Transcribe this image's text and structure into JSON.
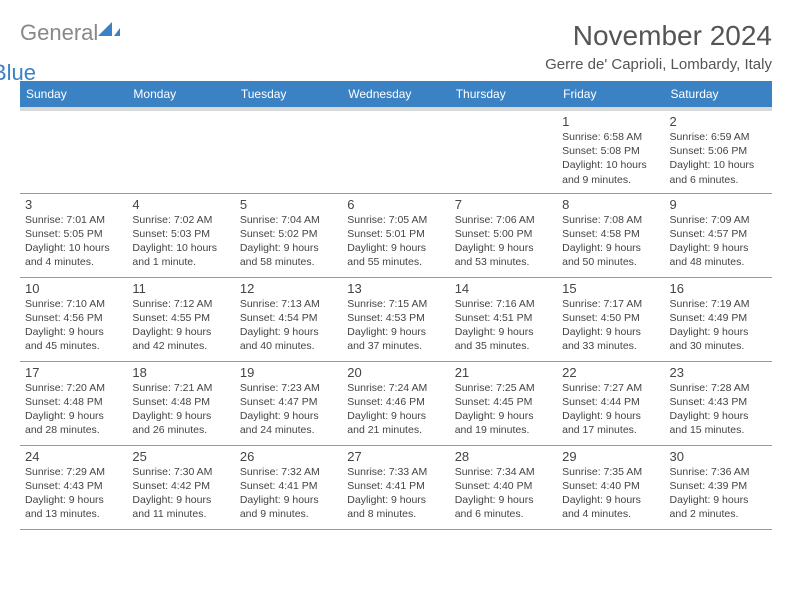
{
  "brand": {
    "part1": "General",
    "part2": "Blue",
    "gray": "#888888",
    "blue": "#3b82c4"
  },
  "header": {
    "month_title": "November 2024",
    "location": "Gerre de' Caprioli, Lombardy, Italy",
    "title_fontsize": 28,
    "location_fontsize": 15,
    "title_color": "#555555"
  },
  "calendar": {
    "type": "table",
    "columns": [
      "Sunday",
      "Monday",
      "Tuesday",
      "Wednesday",
      "Thursday",
      "Friday",
      "Saturday"
    ],
    "header_bg": "#3b82c4",
    "header_fg": "#ffffff",
    "header_underband": "#d9d9d9",
    "row_border": "#999999",
    "daynum_fontsize": 13,
    "info_fontsize": 10.5,
    "weeks": [
      [
        null,
        null,
        null,
        null,
        null,
        {
          "n": "1",
          "sunrise": "Sunrise: 6:58 AM",
          "sunset": "Sunset: 5:08 PM",
          "day": "Daylight: 10 hours and 9 minutes."
        },
        {
          "n": "2",
          "sunrise": "Sunrise: 6:59 AM",
          "sunset": "Sunset: 5:06 PM",
          "day": "Daylight: 10 hours and 6 minutes."
        }
      ],
      [
        {
          "n": "3",
          "sunrise": "Sunrise: 7:01 AM",
          "sunset": "Sunset: 5:05 PM",
          "day": "Daylight: 10 hours and 4 minutes."
        },
        {
          "n": "4",
          "sunrise": "Sunrise: 7:02 AM",
          "sunset": "Sunset: 5:03 PM",
          "day": "Daylight: 10 hours and 1 minute."
        },
        {
          "n": "5",
          "sunrise": "Sunrise: 7:04 AM",
          "sunset": "Sunset: 5:02 PM",
          "day": "Daylight: 9 hours and 58 minutes."
        },
        {
          "n": "6",
          "sunrise": "Sunrise: 7:05 AM",
          "sunset": "Sunset: 5:01 PM",
          "day": "Daylight: 9 hours and 55 minutes."
        },
        {
          "n": "7",
          "sunrise": "Sunrise: 7:06 AM",
          "sunset": "Sunset: 5:00 PM",
          "day": "Daylight: 9 hours and 53 minutes."
        },
        {
          "n": "8",
          "sunrise": "Sunrise: 7:08 AM",
          "sunset": "Sunset: 4:58 PM",
          "day": "Daylight: 9 hours and 50 minutes."
        },
        {
          "n": "9",
          "sunrise": "Sunrise: 7:09 AM",
          "sunset": "Sunset: 4:57 PM",
          "day": "Daylight: 9 hours and 48 minutes."
        }
      ],
      [
        {
          "n": "10",
          "sunrise": "Sunrise: 7:10 AM",
          "sunset": "Sunset: 4:56 PM",
          "day": "Daylight: 9 hours and 45 minutes."
        },
        {
          "n": "11",
          "sunrise": "Sunrise: 7:12 AM",
          "sunset": "Sunset: 4:55 PM",
          "day": "Daylight: 9 hours and 42 minutes."
        },
        {
          "n": "12",
          "sunrise": "Sunrise: 7:13 AM",
          "sunset": "Sunset: 4:54 PM",
          "day": "Daylight: 9 hours and 40 minutes."
        },
        {
          "n": "13",
          "sunrise": "Sunrise: 7:15 AM",
          "sunset": "Sunset: 4:53 PM",
          "day": "Daylight: 9 hours and 37 minutes."
        },
        {
          "n": "14",
          "sunrise": "Sunrise: 7:16 AM",
          "sunset": "Sunset: 4:51 PM",
          "day": "Daylight: 9 hours and 35 minutes."
        },
        {
          "n": "15",
          "sunrise": "Sunrise: 7:17 AM",
          "sunset": "Sunset: 4:50 PM",
          "day": "Daylight: 9 hours and 33 minutes."
        },
        {
          "n": "16",
          "sunrise": "Sunrise: 7:19 AM",
          "sunset": "Sunset: 4:49 PM",
          "day": "Daylight: 9 hours and 30 minutes."
        }
      ],
      [
        {
          "n": "17",
          "sunrise": "Sunrise: 7:20 AM",
          "sunset": "Sunset: 4:48 PM",
          "day": "Daylight: 9 hours and 28 minutes."
        },
        {
          "n": "18",
          "sunrise": "Sunrise: 7:21 AM",
          "sunset": "Sunset: 4:48 PM",
          "day": "Daylight: 9 hours and 26 minutes."
        },
        {
          "n": "19",
          "sunrise": "Sunrise: 7:23 AM",
          "sunset": "Sunset: 4:47 PM",
          "day": "Daylight: 9 hours and 24 minutes."
        },
        {
          "n": "20",
          "sunrise": "Sunrise: 7:24 AM",
          "sunset": "Sunset: 4:46 PM",
          "day": "Daylight: 9 hours and 21 minutes."
        },
        {
          "n": "21",
          "sunrise": "Sunrise: 7:25 AM",
          "sunset": "Sunset: 4:45 PM",
          "day": "Daylight: 9 hours and 19 minutes."
        },
        {
          "n": "22",
          "sunrise": "Sunrise: 7:27 AM",
          "sunset": "Sunset: 4:44 PM",
          "day": "Daylight: 9 hours and 17 minutes."
        },
        {
          "n": "23",
          "sunrise": "Sunrise: 7:28 AM",
          "sunset": "Sunset: 4:43 PM",
          "day": "Daylight: 9 hours and 15 minutes."
        }
      ],
      [
        {
          "n": "24",
          "sunrise": "Sunrise: 7:29 AM",
          "sunset": "Sunset: 4:43 PM",
          "day": "Daylight: 9 hours and 13 minutes."
        },
        {
          "n": "25",
          "sunrise": "Sunrise: 7:30 AM",
          "sunset": "Sunset: 4:42 PM",
          "day": "Daylight: 9 hours and 11 minutes."
        },
        {
          "n": "26",
          "sunrise": "Sunrise: 7:32 AM",
          "sunset": "Sunset: 4:41 PM",
          "day": "Daylight: 9 hours and 9 minutes."
        },
        {
          "n": "27",
          "sunrise": "Sunrise: 7:33 AM",
          "sunset": "Sunset: 4:41 PM",
          "day": "Daylight: 9 hours and 8 minutes."
        },
        {
          "n": "28",
          "sunrise": "Sunrise: 7:34 AM",
          "sunset": "Sunset: 4:40 PM",
          "day": "Daylight: 9 hours and 6 minutes."
        },
        {
          "n": "29",
          "sunrise": "Sunrise: 7:35 AM",
          "sunset": "Sunset: 4:40 PM",
          "day": "Daylight: 9 hours and 4 minutes."
        },
        {
          "n": "30",
          "sunrise": "Sunrise: 7:36 AM",
          "sunset": "Sunset: 4:39 PM",
          "day": "Daylight: 9 hours and 2 minutes."
        }
      ]
    ]
  }
}
